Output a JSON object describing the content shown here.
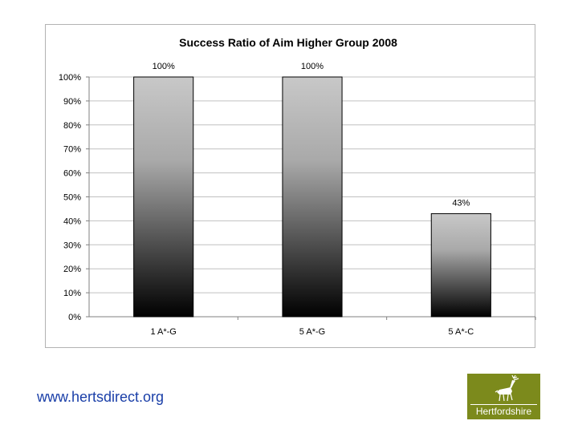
{
  "chart_data": {
    "type": "bar",
    "title": "Success Ratio of Aim Higher Group 2008",
    "categories": [
      "1 A*-G",
      "5 A*-G",
      "5 A*-C"
    ],
    "values": [
      100,
      100,
      43
    ],
    "data_labels": [
      "100%",
      "100%",
      "43%"
    ],
    "ylim": [
      0,
      100
    ],
    "yticks": [
      "0%",
      "10%",
      "20%",
      "30%",
      "40%",
      "50%",
      "60%",
      "70%",
      "80%",
      "90%",
      "100%"
    ],
    "grid": true,
    "legend": "none",
    "colors": {
      "bar_top": "#c8c8c8",
      "bar_bottom": "#000000",
      "grid": "#c0c0c0",
      "axis": "#808080"
    }
  },
  "footer": {
    "url": "www.hertsdirect.org"
  },
  "logo": {
    "text": "Hertfordshire",
    "icon": "stag-icon",
    "color": "#7c8a1c"
  }
}
